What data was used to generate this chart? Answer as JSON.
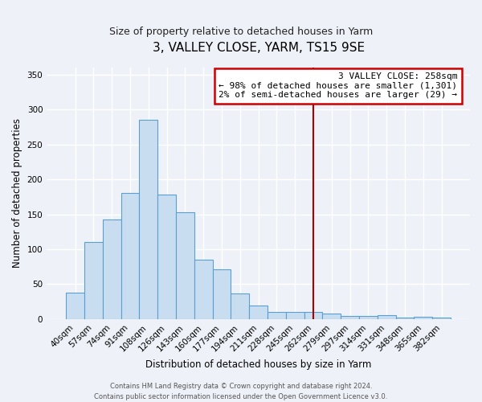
{
  "title": "3, VALLEY CLOSE, YARM, TS15 9SE",
  "subtitle": "Size of property relative to detached houses in Yarm",
  "xlabel": "Distribution of detached houses by size in Yarm",
  "ylabel": "Number of detached properties",
  "bar_labels": [
    "40sqm",
    "57sqm",
    "74sqm",
    "91sqm",
    "108sqm",
    "126sqm",
    "143sqm",
    "160sqm",
    "177sqm",
    "194sqm",
    "211sqm",
    "228sqm",
    "245sqm",
    "262sqm",
    "279sqm",
    "297sqm",
    "314sqm",
    "331sqm",
    "348sqm",
    "365sqm",
    "382sqm"
  ],
  "bar_values": [
    38,
    110,
    143,
    181,
    285,
    178,
    153,
    85,
    71,
    37,
    20,
    10,
    10,
    10,
    8,
    5,
    5,
    6,
    2,
    3,
    2
  ],
  "bar_color": "#c9ddf0",
  "bar_edge_color": "#5a9fd4",
  "vline_index": 13,
  "vline_color": "#aa0000",
  "annotation_title": "3 VALLEY CLOSE: 258sqm",
  "annotation_line1": "← 98% of detached houses are smaller (1,301)",
  "annotation_line2": "2% of semi-detached houses are larger (29) →",
  "annotation_box_color": "#cc0000",
  "ylim": [
    0,
    360
  ],
  "yticks": [
    0,
    50,
    100,
    150,
    200,
    250,
    300,
    350
  ],
  "footer1": "Contains HM Land Registry data © Crown copyright and database right 2024.",
  "footer2": "Contains public sector information licensed under the Open Government Licence v3.0.",
  "bg_color": "#eef2f8",
  "grid_color": "#ffffff"
}
